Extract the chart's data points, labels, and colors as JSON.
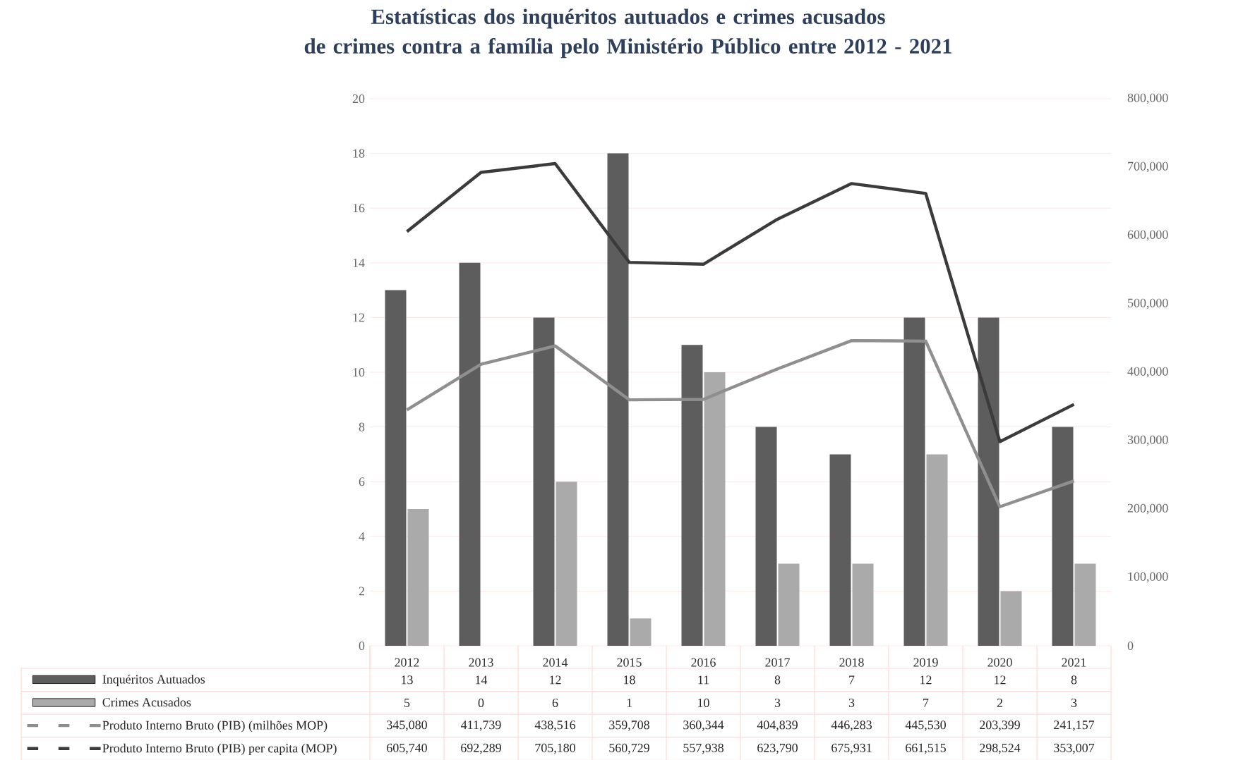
{
  "chart_data": {
    "type": "bar",
    "title": "Estatísticas dos inquéritos autuados e crimes acusados de crimes contra a família pelo Ministério Público entre 2012 - 2021",
    "categories": [
      "2012",
      "2013",
      "2014",
      "2015",
      "2016",
      "2017",
      "2018",
      "2019",
      "2020",
      "2021"
    ],
    "series": [
      {
        "name": "Inquéritos Autuados",
        "color": "#5d5d5d",
        "values": [
          13,
          14,
          12,
          18,
          11,
          8,
          7,
          12,
          12,
          8
        ]
      },
      {
        "name": "Crimes Acusados",
        "color": "#aaaaaa",
        "values": [
          5,
          0,
          6,
          1,
          10,
          3,
          3,
          7,
          2,
          3
        ]
      },
      {
        "name": "Produto Interno Bruto (PIB) (milhões MOP)",
        "type": "line",
        "axis": "y2",
        "color": "#8f8f8f",
        "values": [
          345080,
          411739,
          438516,
          359708,
          360344,
          404839,
          446283,
          445530,
          203399,
          241157
        ],
        "value_labels": [
          "345,080",
          "411,739",
          "438,516",
          "359,708",
          "360,344",
          "404,839",
          "446,283",
          "445,530",
          "203,399",
          "241,157"
        ]
      },
      {
        "name": "Produto Interno Bruto (PIB) per capita (MOP)",
        "type": "line",
        "axis": "y2",
        "color": "#3b3b3b",
        "values": [
          605740,
          692289,
          705180,
          560729,
          557938,
          623790,
          675931,
          661515,
          298524,
          353007
        ],
        "value_labels": [
          "605,740",
          "692,289",
          "705,180",
          "560,729",
          "557,938",
          "623,790",
          "675,931",
          "661,515",
          "298,524",
          "353,007"
        ]
      }
    ],
    "ylim": [
      0,
      20
    ],
    "yticks": [
      0,
      2,
      4,
      6,
      8,
      10,
      12,
      14,
      16,
      18,
      20
    ],
    "y2lim": [
      0,
      800000
    ],
    "y2ticks": [
      0,
      {
        "value": 100000,
        "label": "100,000"
      },
      {
        "value": 200000,
        "label": "200,000"
      },
      {
        "value": 300000,
        "label": "300,000"
      },
      {
        "value": 400000,
        "label": "400,000"
      },
      {
        "value": 500000,
        "label": "500,000"
      },
      {
        "value": 600000,
        "label": "600,000"
      },
      {
        "value": 700000,
        "label": "700,000"
      },
      {
        "value": 800000,
        "label": "800,000"
      }
    ],
    "grid": "y",
    "legend": "bottom",
    "data_labels": true
  }
}
